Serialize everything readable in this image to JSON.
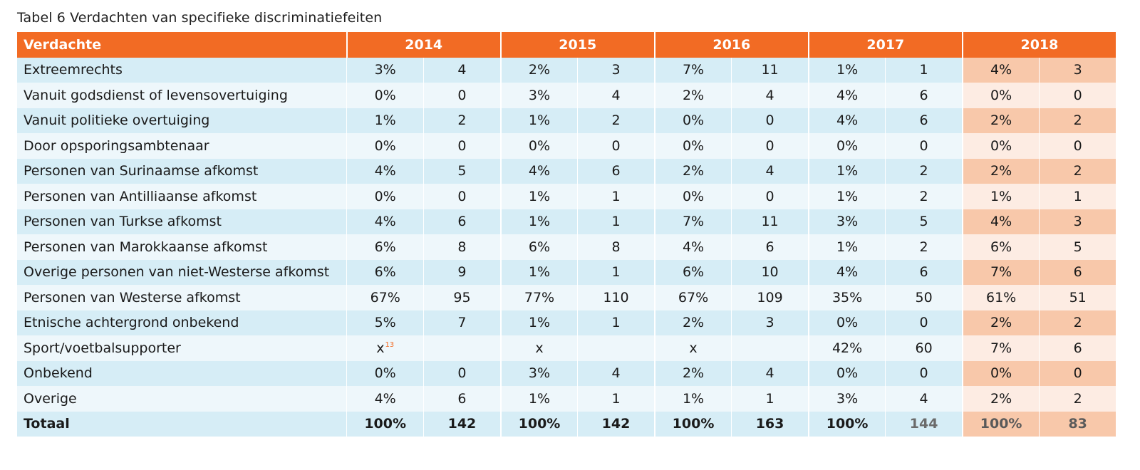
{
  "caption": "Tabel 6 Verdachten van specifieke discriminatiefeiten",
  "header": {
    "label": "Verdachte",
    "years": [
      "2014",
      "2015",
      "2016",
      "2017",
      "2018"
    ]
  },
  "rows": [
    {
      "label": "Extreemrechts",
      "cells": [
        "3%",
        "4",
        "2%",
        "3",
        "7%",
        "11",
        "1%",
        "1",
        "4%",
        "3"
      ]
    },
    {
      "label": "Vanuit godsdienst of levensovertuiging",
      "cells": [
        "0%",
        "0",
        "3%",
        "4",
        "2%",
        "4",
        "4%",
        "6",
        "0%",
        "0"
      ]
    },
    {
      "label": "Vanuit politieke overtuiging",
      "cells": [
        "1%",
        "2",
        "1%",
        "2",
        "0%",
        "0",
        "4%",
        "6",
        "2%",
        "2"
      ]
    },
    {
      "label": "Door opsporingsambtenaar",
      "cells": [
        "0%",
        "0",
        "0%",
        "0",
        "0%",
        "0",
        "0%",
        "0",
        "0%",
        "0"
      ]
    },
    {
      "label": "Personen van Surinaamse afkomst",
      "cells": [
        "4%",
        "5",
        "4%",
        "6",
        "2%",
        "4",
        "1%",
        "2",
        "2%",
        "2"
      ]
    },
    {
      "label": "Personen van Antilliaanse afkomst",
      "cells": [
        "0%",
        "0",
        "1%",
        "1",
        "0%",
        "0",
        "1%",
        "2",
        "1%",
        "1"
      ]
    },
    {
      "label": "Personen van Turkse afkomst",
      "cells": [
        "4%",
        "6",
        "1%",
        "1",
        "7%",
        "11",
        "3%",
        "5",
        "4%",
        "3"
      ]
    },
    {
      "label": "Personen van Marokkaanse afkomst",
      "cells": [
        "6%",
        "8",
        "6%",
        "8",
        "4%",
        "6",
        "1%",
        "2",
        "6%",
        "5"
      ]
    },
    {
      "label": "Overige personen van niet-Westerse afkomst",
      "cells": [
        "6%",
        "9",
        "1%",
        "1",
        "6%",
        "10",
        "4%",
        "6",
        "7%",
        "6"
      ]
    },
    {
      "label": "Personen van Westerse afkomst",
      "cells": [
        "67%",
        "95",
        "77%",
        "110",
        "67%",
        "109",
        "35%",
        "50",
        "61%",
        "51"
      ]
    },
    {
      "label": "Etnische achtergrond onbekend",
      "cells": [
        "5%",
        "7",
        "1%",
        "1",
        "2%",
        "3",
        "0%",
        "0",
        "2%",
        "2"
      ]
    },
    {
      "label": "Sport/voetbalsupporter",
      "cells": [
        "x",
        "",
        "x",
        "",
        "x",
        "",
        "42%",
        "60",
        "7%",
        "6"
      ],
      "footnote": "13"
    },
    {
      "label": "Onbekend",
      "cells": [
        "0%",
        "0",
        "3%",
        "4",
        "2%",
        "4",
        "0%",
        "0",
        "0%",
        "0"
      ]
    },
    {
      "label": "Overige",
      "cells": [
        "4%",
        "6",
        "1%",
        "1",
        "1%",
        "1",
        "3%",
        "4",
        "2%",
        "2"
      ]
    }
  ],
  "total": {
    "label": "Totaal",
    "cells": [
      "100%",
      "142",
      "100%",
      "142",
      "100%",
      "163",
      "100%",
      "144",
      "100%",
      "83"
    ]
  }
}
